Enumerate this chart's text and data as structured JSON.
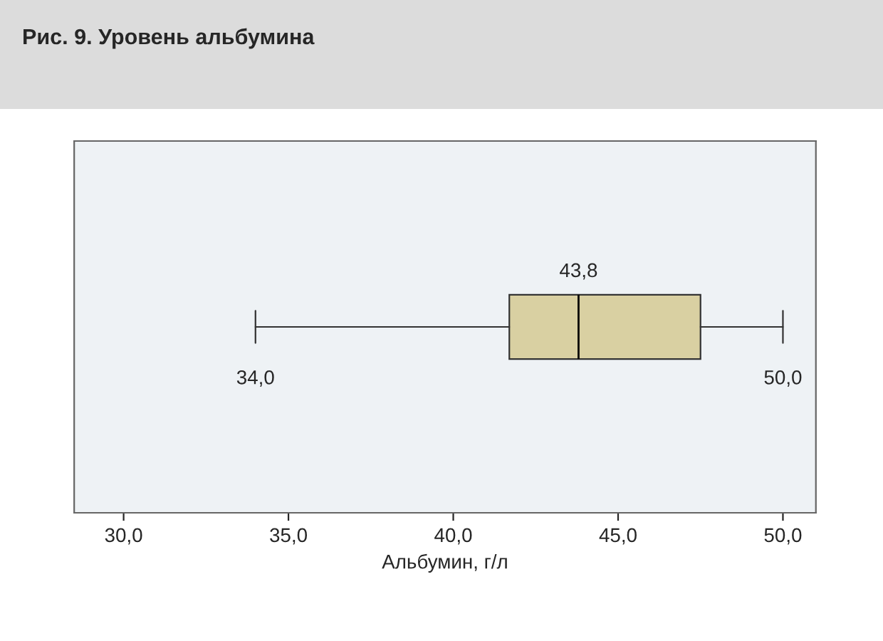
{
  "chart_data": {
    "type": "box",
    "orientation": "horizontal",
    "title": "Рис. 9. Уровень альбумина",
    "xlabel": "Альбумин, г/л",
    "categories": [
      null
    ],
    "boxes": [
      {
        "low": 34.0,
        "q1": 41.7,
        "median": 43.8,
        "q3": 47.5,
        "high": 50.0
      }
    ],
    "color": "#d9d0a2",
    "xlim": [
      28.5,
      51.0
    ],
    "xticks": [
      {
        "value": 30,
        "label": "30,0"
      },
      {
        "value": 35,
        "label": "35,0"
      },
      {
        "value": 40,
        "label": "40,0"
      },
      {
        "value": 45,
        "label": "45,0"
      },
      {
        "value": 50,
        "label": "50,0"
      }
    ],
    "annotations": [
      "34,0",
      "43,8",
      "50,0"
    ],
    "grid": false,
    "tick_labels": "x"
  }
}
